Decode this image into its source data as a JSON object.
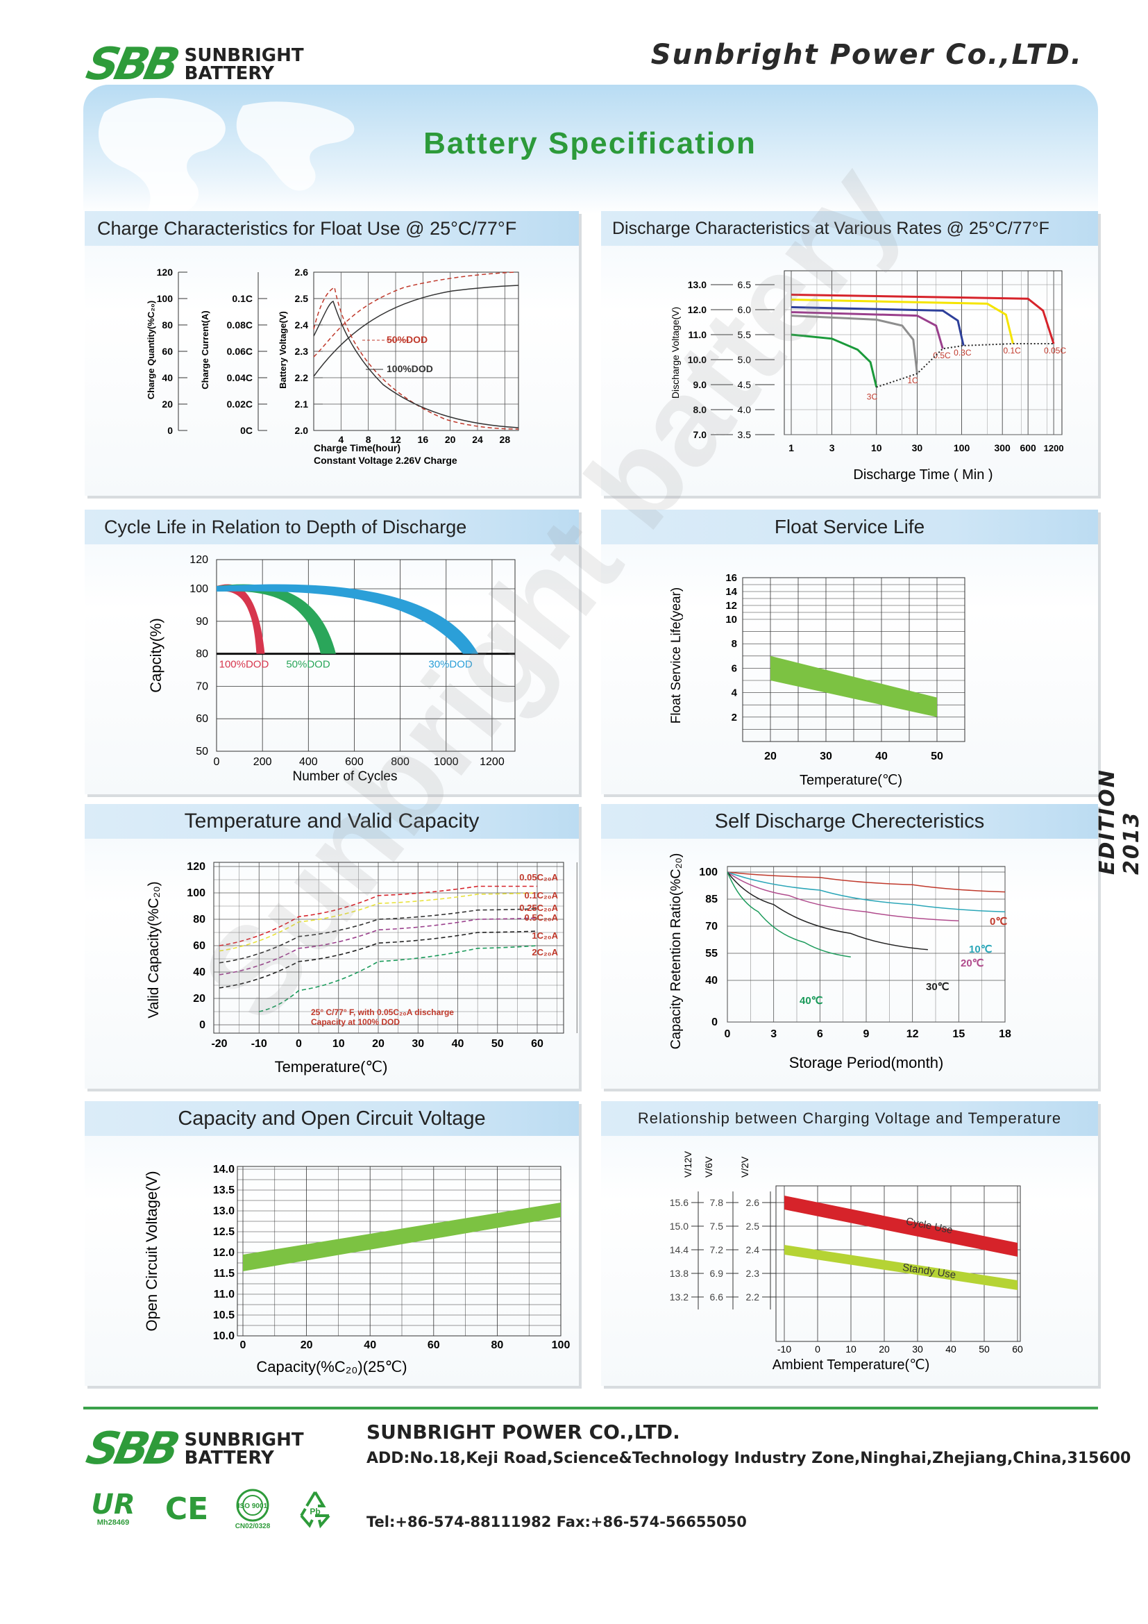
{
  "header": {
    "logo_mark": "SBB",
    "logo_line1": "SUNBRIGHT",
    "logo_line2": "BATTERY",
    "company": "Sunbright Power Co.,LTD.",
    "title": "Battery Specification"
  },
  "edition": "EDITION 2013",
  "watermark": "Sunbright battery",
  "charts": {
    "charge": {
      "title": "Charge Characteristics for Float Use @ 25°C/77°F",
      "y1_label": "Charge Quantity(%C₂₀)",
      "y2_label": "Charge Current(A)",
      "y3_label": "Battery Voltage(V)",
      "xlabel": "Charge Time(hour)",
      "note": "Constant Voltage 2.26V Charge",
      "legend_50": "50%DOD",
      "legend_100": "100%DOD"
    },
    "discharge": {
      "title": "Discharge Characteristics at Various Rates @ 25°C/77°F",
      "ylabel": "Discharge Voltage(V)",
      "xlabel": "Discharge Time ( Min )"
    },
    "cycle": {
      "title": "Cycle  Life in Relation to Depth of Discharge",
      "ylabel": "Capcity(%)",
      "xlabel": "Number of Cycles"
    },
    "float": {
      "title": "Float Service Life",
      "ylabel": "Float Service Life(year)",
      "xlabel": "Temperature(℃)"
    },
    "temp": {
      "title": "Temperature and Valid Capacity",
      "ylabel": "Valid Capacity(%C₂₀)",
      "xlabel": "Temperature(℃)",
      "note1": "25° C/77° F, with 0.05C₂₀A discharge",
      "note2": "Capacity at 100% DOD"
    },
    "self": {
      "title": "Self Discharge Cherecteristics",
      "ylabel": "Capacity Retention Ratio(%C₂₀)",
      "xlabel": "Storage Period(month)"
    },
    "ocv": {
      "title": "Capacity and Open Circuit Voltage",
      "ylabel": "Open Circuit Voltage(V)",
      "xlabel": "Capacity(%C₂₀)(25℃)"
    },
    "chgtemp": {
      "title": "Relationship between Charging Voltage and Temperature",
      "xlabel": "Ambient Temperature(℃)",
      "label_cycle": "Cycle Use",
      "label_standby": "Standy Use",
      "axis_12": "V/12V",
      "axis_6": "V/6V",
      "axis_2": "V/2V"
    }
  },
  "footer": {
    "logo_line1": "SUNBRIGHT",
    "logo_line2": "BATTERY",
    "company": "SUNBRIGHT POWER CO.,LTD.",
    "address": "ADD:No.18,Keji Road,Science&Technology Industry Zone,Ninghai,Zhejiang,China,315600",
    "tel": "Tel:+86-574-88111982 Fax:+86-574-56655050",
    "cert_ul": "Mh28469",
    "cert_iso": "ISO 9001",
    "cert_iso_no": "CN02/0328",
    "cert_ce": "CE"
  },
  "chart_data": [
    {
      "type": "line",
      "title": "Charge Characteristics for Float Use @ 25°C/77°F",
      "xlabel": "Charge Time(hour)",
      "x_ticks": [
        4,
        8,
        12,
        16,
        20,
        24,
        28
      ],
      "y_axes": [
        {
          "label": "Charge Quantity(%C₂₀)",
          "ticks": [
            0,
            20,
            40,
            60,
            80,
            100,
            120
          ]
        },
        {
          "label": "Charge Current(A)",
          "ticks": [
            "0C",
            "0.02C",
            "0.04C",
            "0.06C",
            "0.08C",
            "0.1C"
          ]
        },
        {
          "label": "Battery Voltage(V)",
          "ticks": [
            2.0,
            2.1,
            2.2,
            2.3,
            2.4,
            2.5,
            2.6
          ]
        }
      ],
      "series": [
        {
          "name": "50%DOD",
          "style": "dashed",
          "color": "#c0392b"
        },
        {
          "name": "100%DOD",
          "style": "solid",
          "color": "#333333"
        }
      ]
    },
    {
      "type": "line",
      "title": "Discharge Characteristics at Various Rates @ 25°C/77°F",
      "xlabel": "Discharge Time ( Min )",
      "ylabel": "Discharge Voltage(V)",
      "x_ticks": [
        "1",
        "3",
        "10",
        "30",
        "100",
        "300",
        "600",
        "1200"
      ],
      "y_ticks_12v": [
        7.0,
        8.0,
        9.0,
        10.0,
        11.0,
        12.0,
        13.0
      ],
      "y_ticks_6v": [
        3.5,
        4.0,
        4.5,
        5.0,
        5.5,
        6.0,
        6.5
      ],
      "series": [
        {
          "name": "3C",
          "color": "#1a9a3a",
          "points": [
            [
              1,
              5.5
            ],
            [
              3,
              5.42
            ],
            [
              6,
              5.2
            ],
            [
              8.5,
              4.95
            ],
            [
              10,
              4.45
            ]
          ]
        },
        {
          "name": "1C",
          "color": "#8e8e8e",
          "points": [
            [
              1,
              5.88
            ],
            [
              10,
              5.8
            ],
            [
              20,
              5.68
            ],
            [
              27,
              5.4
            ],
            [
              30,
              4.72
            ]
          ]
        },
        {
          "name": "0.5C",
          "color": "#9a3f8c",
          "points": [
            [
              1,
              5.95
            ],
            [
              30,
              5.88
            ],
            [
              50,
              5.68
            ],
            [
              60,
              5.22
            ]
          ]
        },
        {
          "name": "0.3C",
          "color": "#2d3f9a",
          "points": [
            [
              1,
              6.05
            ],
            [
              60,
              5.98
            ],
            [
              90,
              5.78
            ],
            [
              105,
              5.28
            ]
          ]
        },
        {
          "name": "0.1C",
          "color": "#f5e400",
          "points": [
            [
              1,
              6.2
            ],
            [
              200,
              6.12
            ],
            [
              330,
              5.9
            ],
            [
              400,
              5.32
            ]
          ]
        },
        {
          "name": "0.05C",
          "color": "#d6232a",
          "points": [
            [
              1,
              6.3
            ],
            [
              600,
              6.22
            ],
            [
              900,
              5.98
            ],
            [
              1200,
              5.32
            ]
          ]
        }
      ]
    },
    {
      "type": "area",
      "title": "Cycle  Life in Relation to Depth of Discharge",
      "xlabel": "Number of Cycles",
      "ylabel": "Capcity(%)",
      "x_ticks": [
        0,
        200,
        400,
        600,
        800,
        1000,
        1200
      ],
      "y_ticks": [
        50,
        60,
        70,
        80,
        90,
        100,
        120
      ],
      "series": [
        {
          "name": "100%DOD",
          "color": "#d7364d",
          "end_cycles": 210
        },
        {
          "name": "50%DOD",
          "color": "#2aa65a",
          "end_cycles": 520
        },
        {
          "name": "30%DOD",
          "color": "#2b9fd8",
          "end_cycles": 1140
        }
      ]
    },
    {
      "type": "area",
      "title": "Float Service Life",
      "xlabel": "Temperature(℃)",
      "ylabel": "Float Service Life(year)",
      "x_ticks": [
        20,
        30,
        40,
        50
      ],
      "y_ticks": [
        2,
        4,
        6,
        8,
        10,
        12,
        14,
        16
      ],
      "series": [
        {
          "name": "Float Service Life",
          "color": "#7cc242",
          "upper": [
            [
              20,
              7
            ],
            [
              50,
              3.6
            ]
          ],
          "lower": [
            [
              20,
              5
            ],
            [
              50,
              2
            ]
          ]
        }
      ]
    },
    {
      "type": "line",
      "title": "Temperature and Valid Capacity",
      "xlabel": "Temperature(℃)",
      "ylabel": "Valid Capacity(%C₂₀)",
      "x_ticks": [
        -20,
        -10,
        0,
        10,
        20,
        30,
        40,
        50,
        60
      ],
      "y_ticks": [
        0,
        20,
        40,
        60,
        80,
        100,
        120
      ],
      "series": [
        {
          "name": "0.05C₂₀A",
          "color": "#d6232a",
          "points": [
            [
              -20,
              60
            ],
            [
              0,
              82
            ],
            [
              20,
              98
            ],
            [
              45,
              105
            ],
            [
              60,
              105
            ]
          ]
        },
        {
          "name": "0.1C₂₀A",
          "color": "#e8e23a",
          "points": [
            [
              -20,
              56
            ],
            [
              0,
              78
            ],
            [
              20,
              92
            ],
            [
              45,
              99
            ],
            [
              60,
              100
            ]
          ]
        },
        {
          "name": "0.25C₂₀A",
          "color": "#333333",
          "points": [
            [
              -20,
              47
            ],
            [
              0,
              67
            ],
            [
              20,
              80
            ],
            [
              45,
              87
            ],
            [
              60,
              88
            ]
          ]
        },
        {
          "name": "0.5C₂₀A",
          "color": "#9a3f8c",
          "points": [
            [
              -20,
              38
            ],
            [
              0,
              58
            ],
            [
              20,
              72
            ],
            [
              45,
              80
            ],
            [
              60,
              81
            ]
          ]
        },
        {
          "name": "1C₂₀A",
          "color": "#222222",
          "points": [
            [
              -20,
              28
            ],
            [
              0,
              48
            ],
            [
              20,
              62
            ],
            [
              45,
              70
            ],
            [
              60,
              71
            ]
          ]
        },
        {
          "name": "2C₂₀A",
          "color": "#1a9a5a",
          "points": [
            [
              -10,
              10
            ],
            [
              0,
              26
            ],
            [
              20,
              48
            ],
            [
              45,
              58
            ],
            [
              60,
              60
            ]
          ]
        }
      ]
    },
    {
      "type": "line",
      "title": "Self Discharge Cherecteristics",
      "xlabel": "Storage Period(month)",
      "ylabel": "Capacity Retention Ratio(%C₂₀)",
      "x_ticks": [
        0,
        3,
        6,
        9,
        12,
        15,
        18
      ],
      "y_ticks": [
        0,
        40,
        55,
        70,
        85,
        100
      ],
      "series": [
        {
          "name": "0℃",
          "color": "#c0392b",
          "points": [
            [
              0,
              100
            ],
            [
              6,
              97
            ],
            [
              12,
              93
            ],
            [
              18,
              89
            ]
          ]
        },
        {
          "name": "10℃",
          "color": "#2aa6b8",
          "points": [
            [
              0,
              100
            ],
            [
              6,
              90
            ],
            [
              12,
              82
            ],
            [
              18,
              78
            ]
          ]
        },
        {
          "name": "20℃",
          "color": "#b04a8c",
          "points": [
            [
              0,
              100
            ],
            [
              4,
              87
            ],
            [
              9,
              78
            ],
            [
              15,
              73
            ]
          ]
        },
        {
          "name": "30℃",
          "color": "#222222",
          "points": [
            [
              0,
              100
            ],
            [
              3,
              82
            ],
            [
              8,
              66
            ],
            [
              13,
              57
            ]
          ]
        },
        {
          "name": "40℃",
          "color": "#1a9a5a",
          "points": [
            [
              0,
              100
            ],
            [
              2,
              78
            ],
            [
              5,
              61
            ],
            [
              8,
              53
            ]
          ]
        }
      ]
    },
    {
      "type": "area",
      "title": "Capacity and Open Circuit Voltage",
      "xlabel": "Capacity(%C₂₀)(25℃)",
      "ylabel": "Open Circuit Voltage(V)",
      "x_ticks": [
        0,
        20,
        40,
        60,
        80,
        100
      ],
      "y_ticks": [
        10.0,
        10.5,
        11.0,
        11.5,
        12.0,
        12.5,
        13.0,
        13.5,
        14.0
      ],
      "series": [
        {
          "name": "Open Circuit Voltage",
          "color": "#7cc242",
          "upper": [
            [
              0,
              11.95
            ],
            [
              100,
              13.2
            ]
          ],
          "lower": [
            [
              0,
              11.55
            ],
            [
              100,
              12.85
            ]
          ]
        }
      ]
    },
    {
      "type": "line",
      "title": "Relationship between Charging Voltage and Temperature",
      "xlabel": "Ambient Temperature(℃)",
      "x_ticks": [
        -10,
        0,
        10,
        20,
        30,
        40,
        50,
        60
      ],
      "y_ticks_12v": [
        13.2,
        13.8,
        14.4,
        15.0,
        15.6
      ],
      "y_ticks_6v": [
        6.6,
        6.9,
        7.2,
        7.5,
        7.8
      ],
      "y_ticks_2v": [
        2.2,
        2.3,
        2.4,
        2.5,
        2.6
      ],
      "series": [
        {
          "name": "Cycle Use",
          "color": "#d6232a",
          "points": [
            [
              -10,
              2.6
            ],
            [
              60,
              2.4
            ]
          ]
        },
        {
          "name": "Standy Use",
          "color": "#b5d334",
          "points": [
            [
              -10,
              2.4
            ],
            [
              60,
              2.25
            ]
          ]
        }
      ]
    }
  ]
}
